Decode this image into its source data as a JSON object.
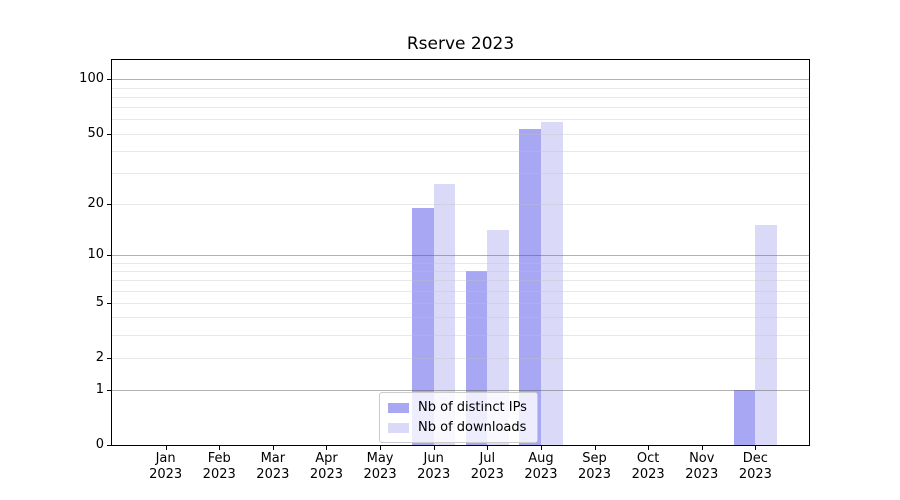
{
  "title": "Rserve 2023",
  "chart_data": {
    "type": "bar",
    "title": "Rserve 2023",
    "categories": [
      {
        "month": "Jan",
        "year": "2023"
      },
      {
        "month": "Feb",
        "year": "2023"
      },
      {
        "month": "Mar",
        "year": "2023"
      },
      {
        "month": "Apr",
        "year": "2023"
      },
      {
        "month": "May",
        "year": "2023"
      },
      {
        "month": "Jun",
        "year": "2023"
      },
      {
        "month": "Jul",
        "year": "2023"
      },
      {
        "month": "Aug",
        "year": "2023"
      },
      {
        "month": "Sep",
        "year": "2023"
      },
      {
        "month": "Oct",
        "year": "2023"
      },
      {
        "month": "Nov",
        "year": "2023"
      },
      {
        "month": "Dec",
        "year": "2023"
      }
    ],
    "series": [
      {
        "name": "Nb of distinct IPs",
        "color": "#a7a7f3",
        "values": [
          0,
          0,
          0,
          0,
          0,
          19,
          8,
          53,
          0,
          0,
          0,
          1
        ]
      },
      {
        "name": "Nb of downloads",
        "color": "#dadaf8",
        "values": [
          0,
          0,
          0,
          0,
          0,
          26,
          14,
          58,
          0,
          0,
          0,
          15
        ]
      }
    ],
    "yscale": "log1p",
    "ylim": [
      0,
      127
    ],
    "yticks": [
      0,
      1,
      2,
      5,
      10,
      20,
      50,
      100
    ],
    "major_gridlines": [
      1,
      10,
      100
    ],
    "minor_gridlines": [
      2,
      3,
      4,
      5,
      6,
      7,
      8,
      9,
      20,
      30,
      40,
      50,
      60,
      70,
      80,
      90
    ],
    "grid": true,
    "legend_position": "lower center",
    "xlabel": "",
    "ylabel": ""
  },
  "colors": {
    "axis": "#000000",
    "background": "#ffffff",
    "major_grid": "#b2b2b2",
    "minor_grid": "#e8e8e8",
    "legend_border": "#cccccc"
  }
}
